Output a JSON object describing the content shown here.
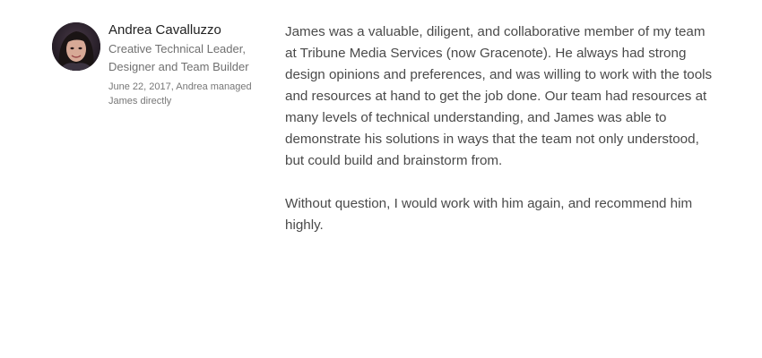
{
  "recommender": {
    "name": "Andrea Cavalluzzo",
    "headline": "Creative Technical Leader, Designer and Team Builder",
    "relationship": "June 22, 2017, Andrea managed James directly",
    "avatar_icon": "profile-photo"
  },
  "recommendation": {
    "paragraphs": [
      "James was a valuable, diligent, and collaborative member of my team at Tribune Media Services (now Gracenote). He always had strong design opinions and preferences, and was willing to work with the tools and resources at hand to get the job done. Our team had resources at many levels of technical understanding, and James was able to demonstrate his solutions in ways that the team not only understood, but could build and brainstorm from.",
      "Without question, I would work with him again, and recommend him highly."
    ]
  },
  "colors": {
    "name": "#222222",
    "secondary_text": "#707070",
    "body_text": "#4a4a4a",
    "background": "#ffffff"
  }
}
